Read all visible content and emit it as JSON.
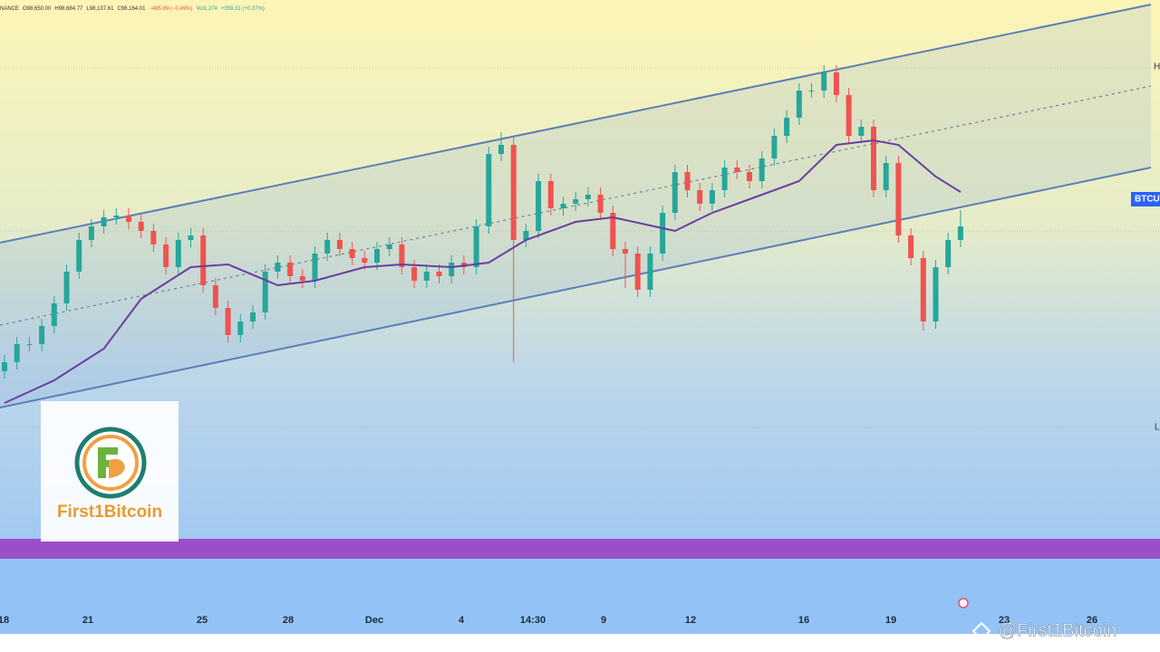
{
  "chart_data": {
    "type": "candlestick",
    "header": [
      "NANCE",
      "O98,650.00",
      "H98,684.77",
      "L98,137.61",
      "C98,164.01",
      "−485.99 (−0.49%)",
      "Vol1.274",
      "+359.31 (+0.37%)"
    ],
    "symbol_tag": "BTCU",
    "price_markers": [
      "H",
      "L"
    ],
    "x_labels": [
      "18",
      "21",
      "25",
      "28",
      "Dec",
      "4",
      "14:30",
      "9",
      "12",
      "16",
      "19",
      "23",
      "26"
    ],
    "logo_text": "First1Bitcoin",
    "watermark": "@First1Bitcoin",
    "up_color": "#26a69a",
    "down_color": "#ef5350",
    "ylim": [
      76200,
      110700
    ],
    "open": [
      90200,
      90700,
      91700,
      91700,
      92700,
      93950,
      95700,
      97450,
      98200,
      98700,
      98800,
      98450,
      97950,
      97200,
      95950,
      97450,
      97700,
      94950,
      93700,
      92200,
      92950,
      93450,
      95700,
      96200,
      95450,
      95200,
      96700,
      97450,
      96950,
      96450,
      96200,
      96950,
      97200,
      95950,
      95200,
      95700,
      95450,
      96200,
      95950,
      98200,
      102200,
      102700,
      97450,
      97950,
      100700,
      99200,
      99450,
      99700,
      99950,
      98950,
      96950,
      96700,
      94700,
      96700,
      98950,
      101200,
      100200,
      99450,
      100200,
      101450,
      101200,
      100700,
      101950,
      103200,
      104200,
      105700,
      105700,
      106700,
      105450,
      103200,
      103700,
      100200,
      101700,
      97700,
      96450,
      92950,
      95950,
      97450
    ],
    "close": [
      90700,
      91700,
      91700,
      92700,
      93950,
      95700,
      97450,
      98200,
      98700,
      98800,
      98450,
      97950,
      97200,
      95950,
      97450,
      97700,
      94950,
      93700,
      92200,
      92950,
      93450,
      95700,
      96200,
      95450,
      95200,
      96700,
      97450,
      96950,
      96450,
      96200,
      96950,
      97200,
      95950,
      95200,
      95700,
      95450,
      96200,
      95950,
      98200,
      102200,
      102700,
      97450,
      97950,
      100700,
      99200,
      99450,
      99700,
      99950,
      98950,
      96950,
      96700,
      94700,
      96700,
      98950,
      101200,
      100200,
      99450,
      100200,
      101450,
      101200,
      100700,
      101950,
      103200,
      104200,
      105700,
      105700,
      106700,
      105450,
      103200,
      103700,
      100200,
      101700,
      97700,
      96450,
      92950,
      95950,
      97450,
      98200
    ],
    "high": [
      91100,
      92100,
      92100,
      93100,
      94350,
      96100,
      97850,
      98600,
      99100,
      99200,
      99200,
      98850,
      98350,
      97600,
      97850,
      98100,
      98100,
      95350,
      94100,
      93350,
      93850,
      96100,
      96600,
      96600,
      95850,
      97100,
      97850,
      97850,
      97350,
      96850,
      97350,
      97600,
      97600,
      96350,
      96100,
      96100,
      96600,
      96600,
      98600,
      102600,
      103400,
      103100,
      98350,
      101100,
      101100,
      99850,
      100100,
      100350,
      100350,
      99350,
      97350,
      97100,
      97100,
      99350,
      101600,
      101600,
      100600,
      100600,
      101850,
      101850,
      101600,
      102350,
      103600,
      104600,
      106100,
      106100,
      107100,
      107100,
      105850,
      104100,
      104100,
      102100,
      102100,
      98100,
      96850,
      96350,
      97850,
      99100
    ],
    "low": [
      89800,
      90300,
      91300,
      91300,
      92300,
      93550,
      95300,
      97050,
      97800,
      98300,
      98050,
      97550,
      96800,
      95550,
      95550,
      97050,
      94550,
      93300,
      91800,
      91800,
      92550,
      93050,
      95300,
      95050,
      94800,
      94800,
      96300,
      96550,
      96050,
      95800,
      95800,
      96550,
      95550,
      94800,
      94800,
      95050,
      95050,
      95550,
      95550,
      97800,
      101800,
      90700,
      97050,
      97550,
      98800,
      98800,
      99050,
      99300,
      98550,
      96550,
      94800,
      94300,
      94300,
      96300,
      98550,
      99800,
      99050,
      99050,
      99800,
      100800,
      100300,
      100300,
      101550,
      102800,
      103800,
      105300,
      105300,
      105050,
      102800,
      102800,
      99800,
      99800,
      97300,
      96050,
      92450,
      92550,
      95550,
      97050
    ],
    "moving_average": {
      "color": "#6a3fa0",
      "x": [
        0,
        4,
        8,
        11,
        15,
        18,
        22,
        25,
        29,
        32,
        36,
        39,
        42,
        46,
        49,
        54,
        57,
        60,
        64,
        67,
        70,
        72,
        75,
        77
      ],
      "values": [
        88450,
        89700,
        91450,
        94200,
        95950,
        96100,
        94950,
        95200,
        95950,
        96100,
        95950,
        96200,
        97450,
        98450,
        98700,
        97950,
        98950,
        99700,
        100700,
        102700,
        102950,
        102700,
        100950,
        100100
      ]
    }
  }
}
